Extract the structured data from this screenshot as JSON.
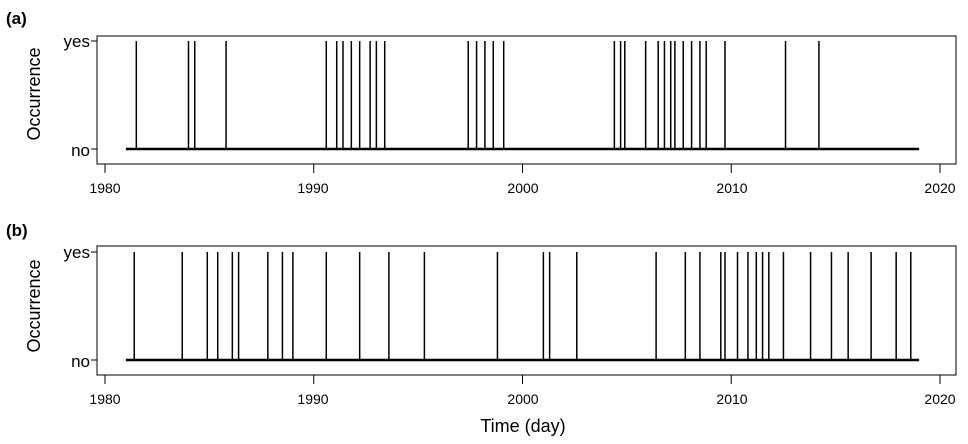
{
  "chart_data": [
    {
      "type": "event-occurrence",
      "panel_label": "(a)",
      "ylabel": "Occurrence",
      "y_levels": [
        "no",
        "yes"
      ],
      "xlim": [
        1980,
        2020
      ],
      "x_ticks": [
        1980,
        1990,
        2000,
        2010,
        2020
      ],
      "baseline_range": [
        1981,
        2019
      ],
      "events": [
        1981.5,
        1984.0,
        1984.3,
        1985.8,
        1990.6,
        1991.1,
        1991.4,
        1991.8,
        1992.2,
        1992.7,
        1993.0,
        1993.4,
        1997.4,
        1997.8,
        1998.2,
        1998.6,
        1999.1,
        2004.4,
        2004.7,
        2004.9,
        2005.9,
        2006.5,
        2006.8,
        2007.1,
        2007.3,
        2007.7,
        2008.1,
        2008.5,
        2008.8,
        2009.7,
        2012.6,
        2014.2
      ]
    },
    {
      "type": "event-occurrence",
      "panel_label": "(b)",
      "ylabel": "Occurrence",
      "y_levels": [
        "no",
        "yes"
      ],
      "xlim": [
        1980,
        2020
      ],
      "x_ticks": [
        1980,
        1990,
        2000,
        2010,
        2020
      ],
      "baseline_range": [
        1981,
        2019
      ],
      "xlabel": "Time (day)",
      "events": [
        1981.4,
        1983.7,
        1984.9,
        1985.4,
        1986.1,
        1986.4,
        1987.8,
        1988.5,
        1989.0,
        1990.6,
        1992.2,
        1993.6,
        1995.3,
        1998.8,
        2001.0,
        2001.3,
        2002.6,
        2006.4,
        2007.8,
        2008.5,
        2009.5,
        2009.7,
        2010.3,
        2010.8,
        2011.2,
        2011.5,
        2011.8,
        2012.5,
        2013.8,
        2014.8,
        2015.6,
        2016.7,
        2017.9,
        2018.6
      ]
    }
  ]
}
